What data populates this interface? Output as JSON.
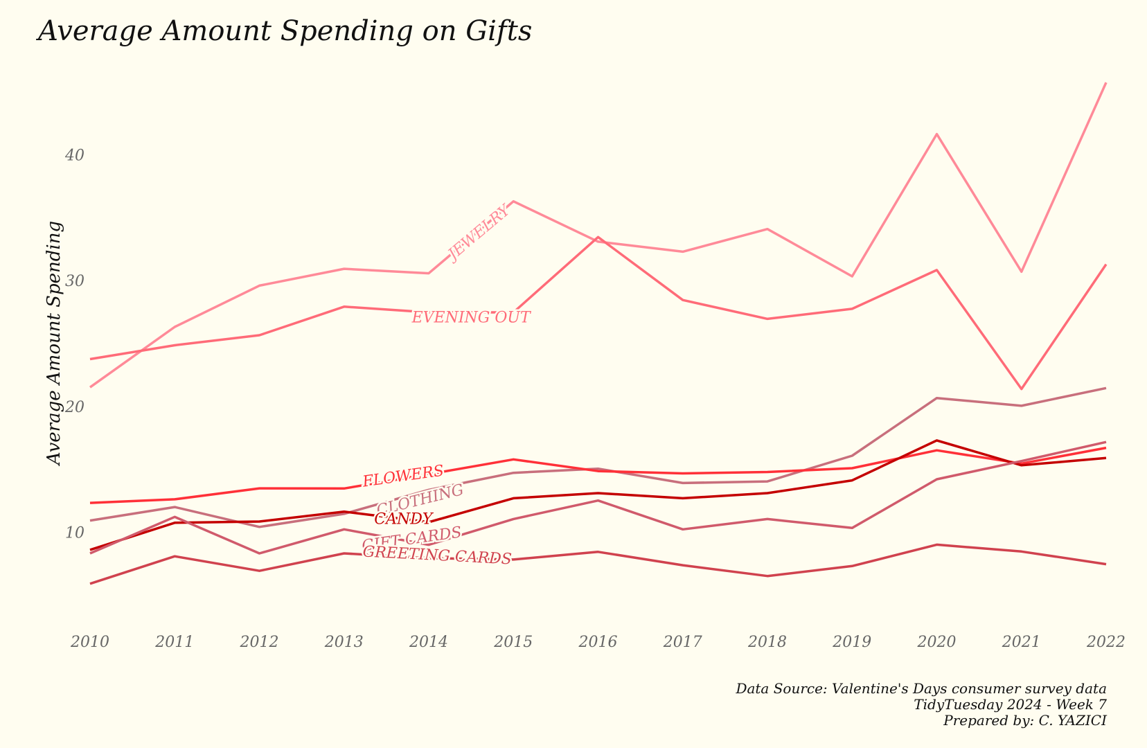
{
  "chart_data": {
    "type": "line",
    "title": "Average Amount Spending on Gifts",
    "ylabel": "Average Amount Spending",
    "xlabel": "",
    "x": [
      2010,
      2011,
      2012,
      2013,
      2014,
      2015,
      2016,
      2017,
      2018,
      2019,
      2020,
      2021,
      2022
    ],
    "xlim": [
      2010,
      2022
    ],
    "ylim": [
      4.3,
      45.7
    ],
    "yticks": [
      10,
      20,
      30,
      40
    ],
    "grid": false,
    "legend": "none",
    "series": [
      {
        "name": "JEWELRY",
        "color": "#ff8a98",
        "label_x": 2014.6,
        "label_y": 33.8,
        "label_angle": -40,
        "values": [
          21.52,
          26.32,
          29.6,
          30.94,
          30.58,
          36.3,
          33.1,
          32.3,
          34.1,
          30.34,
          41.65,
          30.71,
          45.75
        ]
      },
      {
        "name": "EVENING OUT",
        "color": "#ff6b78",
        "label_x": 2014.5,
        "label_y": 27.0,
        "label_angle": 0,
        "values": [
          23.76,
          24.86,
          25.66,
          27.93,
          27.48,
          27.48,
          33.46,
          28.46,
          26.96,
          27.76,
          30.84,
          21.39,
          31.3
        ]
      },
      {
        "name": "CLOTHING",
        "color": "#c86f7c",
        "label_x": 2013.9,
        "label_y": 12.5,
        "label_angle": -14,
        "values": [
          10.93,
          12.0,
          10.42,
          11.46,
          13.37,
          14.72,
          15.05,
          13.91,
          14.04,
          16.08,
          20.67,
          20.05,
          21.46
        ]
      },
      {
        "name": "FLOWERS",
        "color": "#ff3038",
        "label_x": 2013.7,
        "label_y": 14.4,
        "label_angle": -8,
        "values": [
          12.33,
          12.62,
          13.49,
          13.48,
          14.61,
          15.79,
          14.86,
          14.68,
          14.79,
          15.09,
          16.51,
          15.46,
          16.71
        ]
      },
      {
        "name": "CANDY",
        "color": "#c40000",
        "label_x": 2013.7,
        "label_y": 11.0,
        "label_angle": 0,
        "values": [
          8.6,
          10.75,
          10.85,
          11.64,
          10.8,
          12.7,
          13.11,
          12.7,
          13.11,
          14.12,
          17.3,
          15.32,
          15.9
        ]
      },
      {
        "name": "GIFT CARDS",
        "color": "#d05a6b",
        "label_x": 2013.8,
        "label_y": 9.4,
        "label_angle": -8,
        "values": [
          8.32,
          11.22,
          8.32,
          10.23,
          9.0,
          11.05,
          12.52,
          10.23,
          11.05,
          10.34,
          14.21,
          15.66,
          17.17
        ]
      },
      {
        "name": "GREETING CARDS",
        "color": "#d0424e",
        "label_x": 2014.1,
        "label_y": 8.1,
        "label_angle": 3,
        "values": [
          5.91,
          8.09,
          6.93,
          8.32,
          7.94,
          7.83,
          8.44,
          7.38,
          6.52,
          7.31,
          9.01,
          8.47,
          7.46
        ]
      }
    ]
  },
  "caption": {
    "line1": "Data Source: Valentine's Days consumer survey data",
    "line2": "TidyTuesday 2024 - Week 7",
    "line3": "Prepared by: C. YAZICI"
  }
}
